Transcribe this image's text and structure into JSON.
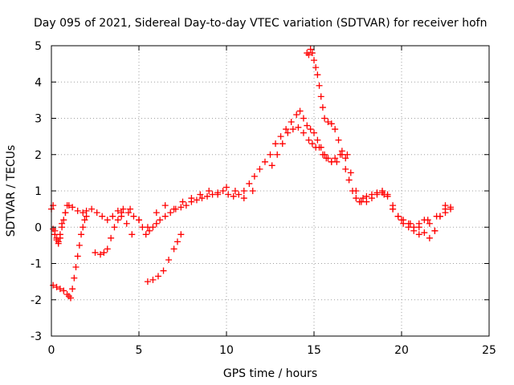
{
  "chart_data": {
    "type": "scatter",
    "title": "Day 095 of 2021, Sidereal Day-to-day VTEC variation (SDTVAR) for receiver hofn",
    "xlabel": "GPS time / hours",
    "ylabel": "SDTVAR / TECUs",
    "xlim": [
      0,
      25
    ],
    "ylim": [
      -3,
      5
    ],
    "xticks": [
      "0",
      "5",
      "10",
      "15",
      "20",
      "25"
    ],
    "yticks": [
      "-3",
      "-2",
      "-1",
      "0",
      "1",
      "2",
      "3",
      "4",
      "5"
    ],
    "grid": true,
    "marker": "+",
    "series": [
      {
        "name": "SDTVAR",
        "color": "#ff0000",
        "x": [
          0.0,
          0.1,
          0.2,
          0.3,
          0.4,
          0.5,
          0.6,
          0.8,
          1.0,
          1.2,
          1.5,
          1.8,
          2.0,
          2.3,
          2.6,
          2.9,
          3.2,
          3.5,
          3.8,
          4.1,
          4.4,
          4.7,
          5.0,
          5.2,
          5.4,
          5.6,
          5.8,
          6.0,
          6.2,
          6.5,
          6.8,
          7.1,
          7.4,
          7.7,
          8.0,
          8.3,
          8.6,
          8.9,
          9.2,
          9.5,
          9.8,
          10.1,
          10.4,
          10.7,
          11.0,
          11.3,
          11.6,
          11.9,
          12.2,
          12.5,
          12.8,
          13.1,
          13.4,
          13.7,
          14.0,
          14.2,
          14.4,
          14.6,
          14.8,
          15.0,
          15.2,
          15.4,
          15.6,
          15.8,
          16.0,
          16.2,
          16.5,
          16.8,
          17.1,
          17.4,
          17.7,
          18.0,
          18.3,
          18.6,
          18.9,
          19.2,
          19.5,
          19.8,
          20.1,
          20.4,
          20.7,
          21.0,
          21.3,
          21.6,
          21.9,
          22.2,
          22.5,
          22.8,
          0.1,
          0.2,
          0.3,
          0.4,
          0.5,
          0.6,
          0.7,
          0.8,
          0.9,
          0.1,
          0.3,
          0.5,
          0.7,
          0.9,
          1.0,
          1.1,
          1.2,
          1.3,
          1.4,
          1.5,
          1.6,
          1.7,
          1.8,
          1.9,
          2.0,
          2.5,
          2.8,
          3.0,
          3.2,
          3.4,
          3.6,
          3.8,
          4.0,
          4.3,
          4.6,
          5.5,
          5.8,
          6.1,
          6.4,
          6.7,
          7.0,
          7.2,
          7.4,
          12.6,
          12.9,
          13.2,
          13.5,
          13.8,
          14.1,
          14.4,
          14.7,
          14.9,
          15.1,
          15.3,
          15.5,
          15.7,
          16.0,
          16.3,
          16.6,
          16.9,
          14.6,
          14.7,
          14.8,
          14.9,
          15.0,
          15.1,
          15.2,
          15.3,
          15.4,
          15.5,
          15.6,
          15.8,
          16.0,
          16.2,
          16.4,
          16.6,
          16.8,
          17.0,
          17.2,
          17.4,
          17.6,
          17.8,
          18.0,
          18.3,
          18.6,
          18.9,
          19.2,
          19.5,
          19.8,
          20.1,
          20.4,
          20.7,
          21.0,
          21.3,
          21.6,
          21.9,
          22.2,
          22.5,
          22.8,
          4.0,
          4.5,
          5.0,
          5.5,
          6.0,
          6.5,
          7.0,
          7.5,
          8.0,
          8.5,
          9.0,
          9.5,
          10.0,
          10.5,
          11.0,
          11.5,
          19.0,
          19.5,
          20.0,
          20.5,
          21.0,
          21.5,
          22.0,
          22.5
        ],
        "y": [
          0.5,
          0.6,
          -0.1,
          -0.3,
          -0.4,
          -0.2,
          0.1,
          0.4,
          0.6,
          0.55,
          0.45,
          0.4,
          0.45,
          0.5,
          0.4,
          0.3,
          0.2,
          0.3,
          0.45,
          0.5,
          0.4,
          0.3,
          0.2,
          0.0,
          -0.2,
          -0.1,
          0.0,
          0.1,
          0.2,
          0.3,
          0.4,
          0.5,
          0.55,
          0.6,
          0.7,
          0.75,
          0.8,
          0.85,
          0.9,
          0.95,
          1.0,
          0.9,
          0.85,
          0.9,
          1.0,
          1.2,
          1.4,
          1.6,
          1.8,
          2.0,
          2.3,
          2.5,
          2.7,
          2.9,
          3.1,
          3.2,
          3.0,
          2.8,
          2.7,
          2.6,
          2.4,
          2.2,
          2.0,
          1.9,
          1.8,
          1.9,
          2.0,
          1.9,
          1.5,
          1.0,
          0.7,
          0.7,
          0.8,
          0.9,
          0.95,
          0.9,
          0.6,
          0.3,
          0.2,
          0.1,
          0.0,
          0.1,
          0.2,
          0.1,
          -0.1,
          0.3,
          0.4,
          0.5,
          -0.05,
          -0.2,
          -0.35,
          -0.45,
          -0.3,
          0.0,
          0.2,
          0.4,
          0.6,
          -1.6,
          -1.65,
          -1.7,
          -1.75,
          -1.85,
          -1.9,
          -1.95,
          -1.7,
          -1.4,
          -1.1,
          -0.8,
          -0.5,
          -0.2,
          0.0,
          0.2,
          0.3,
          -0.7,
          -0.75,
          -0.7,
          -0.6,
          -0.3,
          0.0,
          0.2,
          0.3,
          0.1,
          -0.2,
          -1.5,
          -1.45,
          -1.35,
          -1.2,
          -0.9,
          -0.6,
          -0.4,
          -0.2,
          1.7,
          2.0,
          2.3,
          2.6,
          2.7,
          2.75,
          2.6,
          2.4,
          2.3,
          2.2,
          2.2,
          2.0,
          1.9,
          1.8,
          1.8,
          2.0,
          2.0,
          4.8,
          4.75,
          4.9,
          4.8,
          4.6,
          4.4,
          4.2,
          3.9,
          3.6,
          3.3,
          3.0,
          2.9,
          2.85,
          2.7,
          2.4,
          2.1,
          1.6,
          1.3,
          1.0,
          0.8,
          0.7,
          0.8,
          0.85,
          0.9,
          0.95,
          1.0,
          0.85,
          0.5,
          0.3,
          0.1,
          0.0,
          -0.1,
          0.0,
          -0.15,
          -0.3,
          -0.1,
          0.3,
          0.5,
          0.55,
          0.4,
          0.5,
          0.2,
          0.0,
          0.4,
          0.6,
          0.5,
          0.7,
          0.8,
          0.9,
          1.0,
          0.9,
          1.1,
          1.0,
          0.8,
          1.0,
          0.9,
          0.5,
          0.2,
          0.1,
          -0.2,
          0.2,
          0.3,
          0.6
        ]
      }
    ]
  }
}
